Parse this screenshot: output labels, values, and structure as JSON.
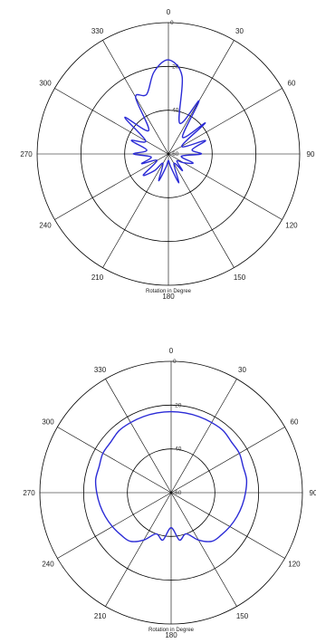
{
  "chart_data": [
    {
      "type": "polar-line",
      "title": "",
      "xlabel": "Rotation in Degree",
      "angle_labels": [
        "0",
        "30",
        "60",
        "90",
        "120",
        "150",
        "180",
        "210",
        "240",
        "270",
        "300",
        "330"
      ],
      "radial_ticks": [
        "0",
        "-20",
        "-40",
        "-60"
      ],
      "rlim": [
        -60,
        0
      ],
      "grid": true,
      "series": [
        {
          "name": "",
          "color": "#2b2bd6",
          "theta_deg": [
            0,
            10,
            20,
            30,
            40,
            50,
            60,
            70,
            80,
            90,
            100,
            110,
            120,
            130,
            140,
            150,
            160,
            170,
            180,
            190,
            200,
            210,
            220,
            230,
            240,
            250,
            260,
            270,
            280,
            290,
            300,
            310,
            320,
            330,
            340,
            350
          ],
          "r_db": [
            -17,
            -24,
            -45,
            -32,
            -50,
            -38,
            -53,
            -42,
            -49,
            -45,
            -54,
            -48,
            -52,
            -55,
            -50,
            -55,
            -46,
            -54,
            -57,
            -54,
            -47,
            -55,
            -50,
            -45,
            -54,
            -47,
            -52,
            -44,
            -50,
            -42,
            -48,
            -34,
            -46,
            -30,
            -31,
            -22
          ]
        }
      ]
    },
    {
      "type": "polar-line",
      "title": "",
      "xlabel": "Rotation in Degree",
      "angle_labels": [
        "0",
        "30",
        "60",
        "90",
        "120",
        "150",
        "180",
        "210",
        "240",
        "270",
        "300",
        "330"
      ],
      "radial_ticks": [
        "0",
        "-20",
        "-40",
        "-60"
      ],
      "rlim": [
        -60,
        0
      ],
      "grid": true,
      "series": [
        {
          "name": "",
          "color": "#2b2bd6",
          "theta_deg": [
            0,
            10,
            20,
            30,
            40,
            50,
            60,
            70,
            80,
            90,
            100,
            110,
            120,
            130,
            140,
            150,
            160,
            170,
            180,
            190,
            200,
            210,
            220,
            230,
            240,
            250,
            260,
            270,
            280,
            290,
            300,
            310,
            320,
            330,
            340,
            350
          ],
          "r_db": [
            -23,
            -23,
            -23,
            -23,
            -23,
            -24,
            -24,
            -25,
            -25,
            -26,
            -27,
            -28,
            -29,
            -30,
            -31,
            -35,
            -40,
            -38,
            -44,
            -38,
            -40,
            -35,
            -31,
            -30,
            -29,
            -28,
            -27,
            -26,
            -25,
            -25,
            -24,
            -24,
            -23,
            -23,
            -23,
            -23
          ]
        }
      ]
    }
  ]
}
